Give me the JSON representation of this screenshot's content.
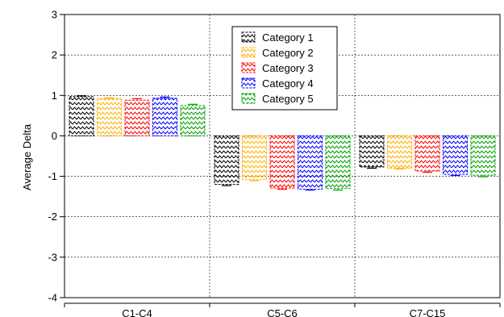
{
  "chart_data": {
    "type": "bar",
    "title": "",
    "xlabel": "",
    "ylabel": "Average Delta",
    "ylim": [
      -4,
      3
    ],
    "yticks": [
      "3",
      "2",
      "1",
      "0",
      "-1",
      "-2",
      "-3",
      "-4"
    ],
    "categories": [
      "C1-C4",
      "C5-C6",
      "C7-C15"
    ],
    "grid": true,
    "legend_position": "top-center",
    "bar_fill": "zigzag-hatch",
    "series": [
      {
        "name": "Category 1",
        "color": "#000000",
        "values": [
          0.97,
          -1.2,
          -0.77
        ],
        "errors": [
          0.02,
          0.03,
          0.03
        ]
      },
      {
        "name": "Category 2",
        "color": "#ffb000",
        "values": [
          0.92,
          -1.08,
          -0.8
        ],
        "errors": [
          0.02,
          0.03,
          0.02
        ]
      },
      {
        "name": "Category 3",
        "color": "#ff0000",
        "values": [
          0.88,
          -1.29,
          -0.87
        ],
        "errors": [
          0.04,
          0.03,
          0.03
        ]
      },
      {
        "name": "Category 4",
        "color": "#0000ff",
        "values": [
          0.93,
          -1.32,
          -0.95
        ],
        "errors": [
          0.03,
          0.02,
          0.03
        ]
      },
      {
        "name": "Category 5",
        "color": "#00a000",
        "values": [
          0.75,
          -1.3,
          -0.97
        ],
        "errors": [
          0.03,
          0.04,
          0.04
        ]
      }
    ]
  }
}
